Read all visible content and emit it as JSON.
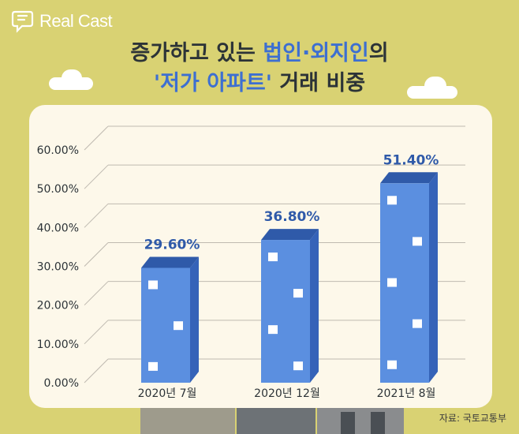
{
  "brand": {
    "name": "Real Cast"
  },
  "title": {
    "line1_pre": "증가하고 있는 ",
    "line1_hl": "법인·외지인",
    "line1_post": "의",
    "line2_hl": "'저가 아파트'",
    "line2_post": " 거래 비중"
  },
  "source": "자료: 국토교통부",
  "colors": {
    "background": "#d9d273",
    "bar_front": "#5b8fe0",
    "bar_side": "#3563b8",
    "bar_top": "#2f5aa9",
    "value_label": "#2f5aa9",
    "card": "#fdf8ea"
  },
  "chart_data": {
    "type": "bar",
    "categories": [
      "2020년 7월",
      "2020년 12월",
      "2021년 8월"
    ],
    "values": [
      29.6,
      36.8,
      51.4
    ],
    "value_labels": [
      "29.60%",
      "36.80%",
      "51.40%"
    ],
    "ytick_labels": [
      "0.00%",
      "10.00%",
      "20.00%",
      "30.00%",
      "40.00%",
      "50.00%",
      "60.00%"
    ],
    "ylim": [
      0,
      60
    ],
    "grid": true,
    "legend": "none",
    "xlabel": "",
    "ylabel": ""
  }
}
